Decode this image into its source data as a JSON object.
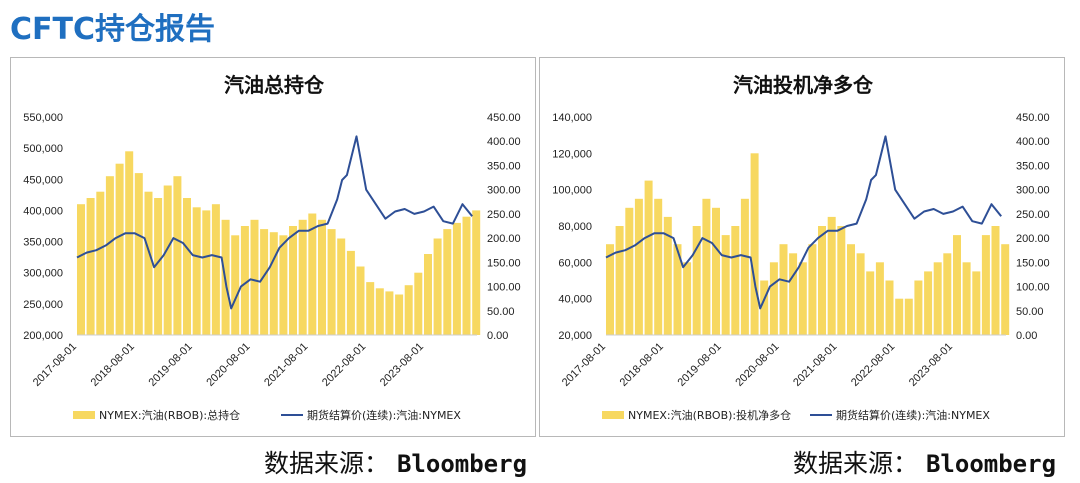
{
  "page": {
    "title": "CFTC持仓报告",
    "source_label": "数据来源：",
    "source_value": "Bloomberg"
  },
  "colors": {
    "bar": "#f7d860",
    "line": "#2e4f96",
    "title_blue": "#1f6fc0"
  },
  "chart_data": [
    {
      "type": "bar+line",
      "title": "汽油总持仓",
      "x_ticks": [
        "2017-08-01",
        "2018-08-01",
        "2019-08-01",
        "2020-08-01",
        "2021-08-01",
        "2022-08-01",
        "2023-08-01"
      ],
      "y_left": {
        "min": 200000,
        "max": 550000,
        "ticks": [
          "550,000",
          "500,000",
          "450,000",
          "400,000",
          "350,000",
          "300,000",
          "250,000",
          "200,000"
        ]
      },
      "y_right": {
        "min": 0,
        "max": 450,
        "ticks": [
          "450.00",
          "400.00",
          "350.00",
          "300.00",
          "250.00",
          "200.00",
          "150.00",
          "100.00",
          "50.00",
          "0.00"
        ]
      },
      "legend": [
        {
          "name": "NYMEX:汽油(RBOB):总持仓",
          "kind": "bar"
        },
        {
          "name": "期货结算价(连续):汽油:NYMEX",
          "kind": "line"
        }
      ],
      "bar_series": {
        "name": "NYMEX:汽油(RBOB):总持仓",
        "x": [
          "2017-08",
          "2017-10",
          "2017-12",
          "2018-02",
          "2018-04",
          "2018-06",
          "2018-08",
          "2018-10",
          "2018-12",
          "2019-02",
          "2019-04",
          "2019-06",
          "2019-08",
          "2019-10",
          "2019-12",
          "2020-02",
          "2020-04",
          "2020-06",
          "2020-08",
          "2020-10",
          "2020-12",
          "2021-02",
          "2021-04",
          "2021-06",
          "2021-08",
          "2021-10",
          "2021-12",
          "2022-02",
          "2022-04",
          "2022-06",
          "2022-08",
          "2022-10",
          "2022-12",
          "2023-02",
          "2023-04",
          "2023-06",
          "2023-08",
          "2023-10",
          "2023-12",
          "2024-02",
          "2024-04",
          "2024-06"
        ],
        "values": [
          410000,
          420000,
          430000,
          455000,
          475000,
          495000,
          460000,
          430000,
          420000,
          440000,
          455000,
          420000,
          405000,
          400000,
          410000,
          385000,
          360000,
          375000,
          385000,
          370000,
          365000,
          360000,
          375000,
          385000,
          395000,
          385000,
          370000,
          355000,
          335000,
          310000,
          285000,
          275000,
          270000,
          265000,
          280000,
          300000,
          330000,
          355000,
          370000,
          380000,
          390000,
          400000
        ]
      },
      "line_series": {
        "name": "期货结算价(连续):汽油:NYMEX",
        "x": [
          "2017-08",
          "2017-10",
          "2017-12",
          "2018-02",
          "2018-04",
          "2018-06",
          "2018-08",
          "2018-10",
          "2018-12",
          "2019-02",
          "2019-04",
          "2019-06",
          "2019-08",
          "2019-10",
          "2019-12",
          "2020-02",
          "2020-03",
          "2020-04",
          "2020-06",
          "2020-08",
          "2020-10",
          "2020-12",
          "2021-02",
          "2021-04",
          "2021-06",
          "2021-08",
          "2021-10",
          "2021-12",
          "2022-02",
          "2022-03",
          "2022-04",
          "2022-06",
          "2022-08",
          "2022-10",
          "2022-12",
          "2023-02",
          "2023-04",
          "2023-06",
          "2023-08",
          "2023-10",
          "2023-12",
          "2024-02",
          "2024-04",
          "2024-06"
        ],
        "values": [
          160,
          170,
          175,
          185,
          200,
          210,
          210,
          200,
          140,
          165,
          200,
          190,
          165,
          160,
          165,
          160,
          100,
          55,
          100,
          115,
          110,
          140,
          180,
          200,
          215,
          215,
          225,
          230,
          280,
          320,
          330,
          410,
          300,
          270,
          240,
          255,
          260,
          250,
          255,
          265,
          235,
          230,
          270,
          245
        ]
      }
    },
    {
      "type": "bar+line",
      "title": "汽油投机净多仓",
      "x_ticks": [
        "2017-08-01",
        "2018-08-01",
        "2019-08-01",
        "2020-08-01",
        "2021-08-01",
        "2022-08-01",
        "2023-08-01"
      ],
      "y_left": {
        "min": 20000,
        "max": 140000,
        "ticks": [
          "140,000",
          "120,000",
          "100,000",
          "80,000",
          "60,000",
          "40,000",
          "20,000"
        ]
      },
      "y_right": {
        "min": 0,
        "max": 450,
        "ticks": [
          "450.00",
          "400.00",
          "350.00",
          "300.00",
          "250.00",
          "200.00",
          "150.00",
          "100.00",
          "50.00",
          "0.00"
        ]
      },
      "legend": [
        {
          "name": "NYMEX:汽油(RBOB):投机净多仓",
          "kind": "bar"
        },
        {
          "name": "期货结算价(连续):汽油:NYMEX",
          "kind": "line"
        }
      ],
      "bar_series": {
        "name": "NYMEX:汽油(RBOB):投机净多仓",
        "x": [
          "2017-08",
          "2017-10",
          "2017-12",
          "2018-02",
          "2018-04",
          "2018-06",
          "2018-08",
          "2018-10",
          "2018-12",
          "2019-02",
          "2019-04",
          "2019-06",
          "2019-08",
          "2019-10",
          "2019-12",
          "2020-02",
          "2020-04",
          "2020-06",
          "2020-08",
          "2020-10",
          "2020-12",
          "2021-02",
          "2021-04",
          "2021-06",
          "2021-08",
          "2021-10",
          "2021-12",
          "2022-02",
          "2022-04",
          "2022-06",
          "2022-08",
          "2022-10",
          "2022-12",
          "2023-02",
          "2023-04",
          "2023-06",
          "2023-08",
          "2023-10",
          "2023-12",
          "2024-02",
          "2024-04",
          "2024-06"
        ],
        "values": [
          70000,
          80000,
          90000,
          95000,
          105000,
          95000,
          85000,
          70000,
          60000,
          80000,
          95000,
          90000,
          75000,
          80000,
          95000,
          120000,
          50000,
          60000,
          70000,
          65000,
          60000,
          70000,
          80000,
          85000,
          80000,
          70000,
          65000,
          55000,
          60000,
          50000,
          40000,
          40000,
          50000,
          55000,
          60000,
          65000,
          75000,
          60000,
          55000,
          75000,
          80000,
          70000
        ]
      },
      "line_series": {
        "name": "期货结算价(连续):汽油:NYMEX",
        "x": [
          "2017-08",
          "2017-10",
          "2017-12",
          "2018-02",
          "2018-04",
          "2018-06",
          "2018-08",
          "2018-10",
          "2018-12",
          "2019-02",
          "2019-04",
          "2019-06",
          "2019-08",
          "2019-10",
          "2019-12",
          "2020-02",
          "2020-03",
          "2020-04",
          "2020-06",
          "2020-08",
          "2020-10",
          "2020-12",
          "2021-02",
          "2021-04",
          "2021-06",
          "2021-08",
          "2021-10",
          "2021-12",
          "2022-02",
          "2022-03",
          "2022-04",
          "2022-06",
          "2022-08",
          "2022-10",
          "2022-12",
          "2023-02",
          "2023-04",
          "2023-06",
          "2023-08",
          "2023-10",
          "2023-12",
          "2024-02",
          "2024-04",
          "2024-06"
        ],
        "values": [
          160,
          170,
          175,
          185,
          200,
          210,
          210,
          200,
          140,
          165,
          200,
          190,
          165,
          160,
          165,
          160,
          100,
          55,
          100,
          115,
          110,
          140,
          180,
          200,
          215,
          215,
          225,
          230,
          280,
          320,
          330,
          410,
          300,
          270,
          240,
          255,
          260,
          250,
          255,
          265,
          235,
          230,
          270,
          245
        ]
      }
    }
  ]
}
